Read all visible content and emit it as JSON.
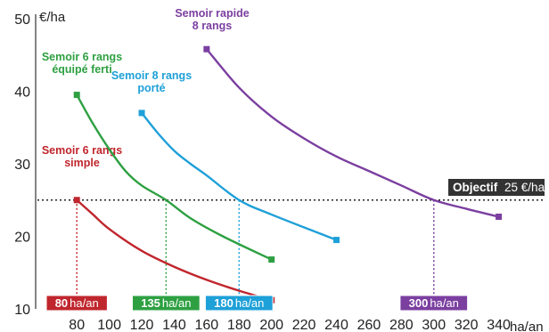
{
  "chart_data": {
    "type": "line",
    "x_unit": "ha/an",
    "y_unit": "€/ha",
    "xlim": [
      70,
      360
    ],
    "ylim": [
      10,
      50
    ],
    "x_ticks": [
      80,
      100,
      120,
      140,
      160,
      180,
      200,
      220,
      240,
      260,
      280,
      300,
      320,
      340
    ],
    "y_ticks": [
      10,
      20,
      30,
      40,
      50
    ],
    "grid": false,
    "series": [
      {
        "name": "Semoir 6 rangs simple",
        "color": "#c0262d",
        "x": [
          80,
          90,
          100,
          120,
          140,
          160,
          180,
          200
        ],
        "y": [
          25.0,
          23.0,
          21.0,
          18.0,
          15.8,
          14.0,
          12.5,
          11.2
        ],
        "crossing_x": 80,
        "crossing_label": "80 ha/an"
      },
      {
        "name": "Semoir 6 rangs équipé ferti",
        "color": "#2ea042",
        "x": [
          80,
          90,
          100,
          110,
          120,
          135,
          150,
          170,
          200
        ],
        "y": [
          39.5,
          35.5,
          32.0,
          29.0,
          27.0,
          25.0,
          22.5,
          20.0,
          16.8
        ],
        "crossing_x": 135,
        "crossing_label": "135 ha/an"
      },
      {
        "name": "Semoir 8 rangs porté",
        "color": "#1ea0d8",
        "x": [
          120,
          130,
          140,
          150,
          160,
          180,
          200,
          240
        ],
        "y": [
          37.0,
          34.2,
          31.8,
          30.0,
          28.4,
          25.0,
          23.0,
          19.5
        ],
        "crossing_x": 180,
        "crossing_label": "180 ha/an"
      },
      {
        "name": "Semoir rapide 8 rangs",
        "color": "#7b3fa0",
        "x": [
          160,
          180,
          200,
          220,
          240,
          260,
          280,
          300,
          320,
          340
        ],
        "y": [
          45.8,
          40.5,
          36.5,
          33.5,
          31.0,
          29.0,
          27.0,
          25.0,
          23.8,
          22.7
        ],
        "crossing_x": 300,
        "crossing_label": "300 ha/an"
      }
    ],
    "objective": {
      "value": 25,
      "label_bold": "Objectif",
      "label_rest": "25 €/ha"
    }
  }
}
